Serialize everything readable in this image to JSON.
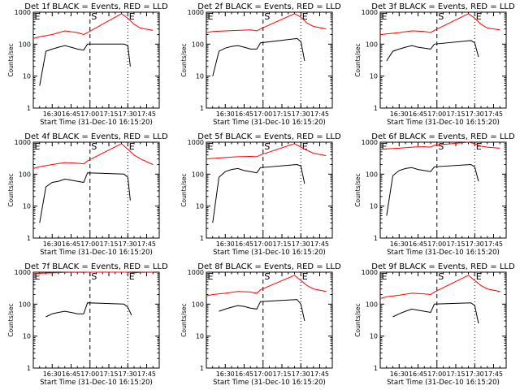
{
  "colors": {
    "events": "#000000",
    "lld": "#ff0000",
    "axes": "#000000",
    "background": "#ffffff"
  },
  "common": {
    "ylabel": "Counts/sec",
    "xlabel": "Start Time (31-Dec-10 16:15:20)",
    "x_ticks": [
      "16:30",
      "16:45",
      "17:00",
      "17:15",
      "17:30",
      "17:45"
    ],
    "y_ticks": [
      "1",
      "10",
      "100",
      "1000"
    ],
    "event_markers": [
      {
        "label": "E",
        "time": "16:15",
        "style": "dotted"
      },
      {
        "label": "S",
        "time": "17:00",
        "style": "dashed"
      },
      {
        "label": "E",
        "time": "17:30",
        "style": "dotted"
      }
    ],
    "xlim": [
      "16:15",
      "17:55"
    ],
    "ylim": [
      1,
      1000
    ],
    "yscale": "log"
  },
  "chart_data": [
    {
      "type": "line",
      "title": "Det 1f BLACK = Events, RED = LLD",
      "series": [
        {
          "name": "Events",
          "color": "#000000",
          "x": [
            "16:20",
            "16:25",
            "16:30",
            "16:35",
            "16:40",
            "16:45",
            "16:50",
            "16:55",
            "16:58",
            "17:27",
            "17:30",
            "17:32"
          ],
          "y": [
            5,
            60,
            70,
            80,
            90,
            80,
            70,
            65,
            100,
            100,
            90,
            20
          ]
        },
        {
          "name": "LLD",
          "color": "#ff0000",
          "x": [
            "16:15",
            "16:20",
            "16:30",
            "16:40",
            "16:50",
            "16:55",
            "16:58",
            "17:25",
            "17:30",
            "17:35",
            "17:40",
            "17:50"
          ],
          "y": [
            150,
            170,
            200,
            260,
            230,
            200,
            230,
            900,
            650,
            420,
            320,
            270
          ]
        }
      ]
    },
    {
      "type": "line",
      "title": "Det 2f BLACK = Events, RED = LLD",
      "series": [
        {
          "name": "Events",
          "color": "#000000",
          "x": [
            "16:20",
            "16:25",
            "16:30",
            "16:35",
            "16:40",
            "16:45",
            "16:50",
            "16:55",
            "16:58",
            "17:27",
            "17:30",
            "17:33"
          ],
          "y": [
            10,
            60,
            75,
            85,
            90,
            80,
            70,
            70,
            110,
            150,
            120,
            30
          ]
        },
        {
          "name": "LLD",
          "color": "#ff0000",
          "x": [
            "16:15",
            "16:20",
            "16:30",
            "16:40",
            "16:50",
            "16:55",
            "16:58",
            "17:25",
            "17:30",
            "17:35",
            "17:40",
            "17:50"
          ],
          "y": [
            230,
            250,
            260,
            270,
            280,
            260,
            300,
            900,
            700,
            450,
            360,
            300
          ]
        }
      ]
    },
    {
      "type": "line",
      "title": "Det 3f BLACK = Events, RED = LLD",
      "series": [
        {
          "name": "Events",
          "color": "#000000",
          "x": [
            "16:20",
            "16:25",
            "16:30",
            "16:35",
            "16:40",
            "16:45",
            "16:50",
            "16:55",
            "16:58",
            "17:27",
            "17:30",
            "17:33"
          ],
          "y": [
            30,
            60,
            70,
            80,
            90,
            80,
            75,
            70,
            100,
            130,
            110,
            40
          ]
        },
        {
          "name": "LLD",
          "color": "#ff0000",
          "x": [
            "16:15",
            "16:20",
            "16:30",
            "16:40",
            "16:50",
            "16:55",
            "16:58",
            "17:25",
            "17:30",
            "17:35",
            "17:40",
            "17:50"
          ],
          "y": [
            200,
            210,
            230,
            260,
            250,
            230,
            270,
            900,
            650,
            420,
            320,
            280
          ]
        }
      ]
    },
    {
      "type": "line",
      "title": "Det 4f BLACK = Events, RED = LLD",
      "series": [
        {
          "name": "Events",
          "color": "#000000",
          "x": [
            "16:20",
            "16:25",
            "16:30",
            "16:35",
            "16:40",
            "16:45",
            "16:50",
            "16:55",
            "16:58",
            "17:27",
            "17:30",
            "17:32"
          ],
          "y": [
            3,
            40,
            55,
            60,
            70,
            65,
            60,
            55,
            110,
            100,
            80,
            15
          ]
        },
        {
          "name": "LLD",
          "color": "#ff0000",
          "x": [
            "16:15",
            "16:20",
            "16:30",
            "16:40",
            "16:50",
            "16:55",
            "16:58",
            "17:25",
            "17:30",
            "17:35",
            "17:40",
            "17:50"
          ],
          "y": [
            150,
            170,
            200,
            230,
            220,
            210,
            260,
            900,
            600,
            400,
            300,
            200
          ]
        }
      ]
    },
    {
      "type": "line",
      "title": "Det 5f BLACK = Events, RED = LLD",
      "series": [
        {
          "name": "Events",
          "color": "#000000",
          "x": [
            "16:20",
            "16:25",
            "16:30",
            "16:35",
            "16:40",
            "16:45",
            "16:50",
            "16:55",
            "16:58",
            "17:27",
            "17:30",
            "17:33"
          ],
          "y": [
            3,
            80,
            120,
            140,
            150,
            130,
            120,
            110,
            160,
            200,
            180,
            50
          ]
        },
        {
          "name": "LLD",
          "color": "#ff0000",
          "x": [
            "16:15",
            "16:20",
            "16:30",
            "16:40",
            "16:50",
            "16:55",
            "16:58",
            "17:25",
            "17:30",
            "17:35",
            "17:40",
            "17:50"
          ],
          "y": [
            300,
            310,
            330,
            350,
            360,
            350,
            400,
            900,
            700,
            550,
            450,
            380
          ]
        }
      ]
    },
    {
      "type": "line",
      "title": "Det 6f BLACK = Events, RED = LLD",
      "series": [
        {
          "name": "Events",
          "color": "#000000",
          "x": [
            "16:20",
            "16:25",
            "16:30",
            "16:35",
            "16:40",
            "16:45",
            "16:50",
            "16:55",
            "16:58",
            "17:27",
            "17:30",
            "17:33"
          ],
          "y": [
            5,
            90,
            130,
            150,
            160,
            140,
            130,
            120,
            170,
            200,
            170,
            60
          ]
        },
        {
          "name": "LLD",
          "color": "#ff0000",
          "x": [
            "16:15",
            "16:20",
            "16:30",
            "16:40",
            "16:50",
            "16:55",
            "16:58",
            "17:25",
            "17:30",
            "17:35",
            "17:40",
            "17:50"
          ],
          "y": [
            600,
            620,
            650,
            700,
            720,
            700,
            800,
            1000,
            900,
            750,
            700,
            650
          ]
        }
      ]
    },
    {
      "type": "line",
      "title": "Det 7f BLACK = Events, RED = LLD",
      "series": [
        {
          "name": "Events",
          "color": "#000000",
          "x": [
            "16:25",
            "16:30",
            "16:35",
            "16:40",
            "16:45",
            "16:50",
            "16:55",
            "16:58",
            "17:27",
            "17:30",
            "17:33"
          ],
          "y": [
            40,
            50,
            55,
            60,
            55,
            50,
            50,
            110,
            100,
            80,
            45
          ]
        },
        {
          "name": "LLD",
          "color": "#ff0000",
          "x": [
            "16:15",
            "16:20",
            "16:30",
            "16:40",
            "16:50",
            "16:55",
            "16:58",
            "17:25",
            "17:30",
            "17:35",
            "17:40",
            "17:50"
          ],
          "y": [
            900,
            920,
            950,
            980,
            1000,
            980,
            1000,
            1000,
            1000,
            950,
            980,
            1000
          ]
        }
      ]
    },
    {
      "type": "line",
      "title": "Det 8f BLACK = Events, RED = LLD",
      "series": [
        {
          "name": "Events",
          "color": "#000000",
          "x": [
            "16:25",
            "16:30",
            "16:35",
            "16:40",
            "16:45",
            "16:50",
            "16:55",
            "16:58",
            "17:27",
            "17:30",
            "17:33"
          ],
          "y": [
            60,
            70,
            80,
            90,
            85,
            75,
            70,
            120,
            140,
            100,
            30
          ]
        },
        {
          "name": "LLD",
          "color": "#ff0000",
          "x": [
            "16:15",
            "16:20",
            "16:30",
            "16:40",
            "16:50",
            "16:55",
            "16:58",
            "17:25",
            "17:30",
            "17:35",
            "17:40",
            "17:50"
          ],
          "y": [
            180,
            200,
            220,
            250,
            240,
            220,
            280,
            800,
            550,
            380,
            300,
            250
          ]
        }
      ]
    },
    {
      "type": "line",
      "title": "Det 9f BLACK = Events, RED = LLD",
      "series": [
        {
          "name": "Events",
          "color": "#000000",
          "x": [
            "16:25",
            "16:30",
            "16:35",
            "16:40",
            "16:45",
            "16:50",
            "16:55",
            "16:58",
            "17:27",
            "17:30",
            "17:33"
          ],
          "y": [
            40,
            50,
            60,
            70,
            65,
            60,
            55,
            100,
            110,
            90,
            25
          ]
        },
        {
          "name": "LLD",
          "color": "#ff0000",
          "x": [
            "16:15",
            "16:20",
            "16:30",
            "16:40",
            "16:50",
            "16:55",
            "16:58",
            "17:25",
            "17:30",
            "17:35",
            "17:40",
            "17:50"
          ],
          "y": [
            150,
            170,
            190,
            220,
            210,
            200,
            240,
            800,
            550,
            380,
            300,
            250
          ]
        }
      ]
    }
  ]
}
